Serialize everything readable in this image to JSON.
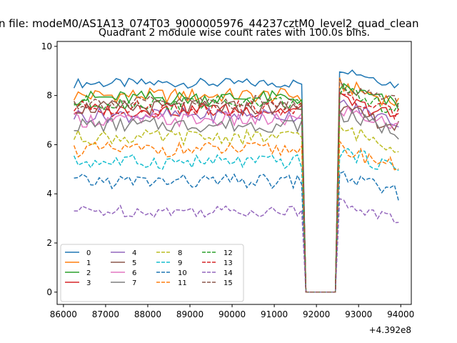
{
  "chart_data": {
    "type": "line",
    "suptitle": "n file: modeM0/AS1A13_074T03_9000005976_44237cztM0_level2_quad_clean",
    "title": "Quadrant 2 module wise count rates with 100.0s bins.",
    "xlabel": "",
    "ylabel": "",
    "offset_label": "+4.392e8",
    "xlim": [
      85850,
      94250
    ],
    "ylim": [
      -0.5,
      10.2
    ],
    "x_ticks": [
      86000,
      87000,
      88000,
      89000,
      90000,
      91000,
      92000,
      93000,
      94000
    ],
    "y_ticks": [
      0,
      2,
      4,
      6,
      8,
      10
    ],
    "x_range": [
      86250,
      93950
    ],
    "bin_s": 100,
    "gap": [
      91750,
      92450
    ],
    "grid": false,
    "legend_placement": "lower-left",
    "legend_columns": 4,
    "series": [
      {
        "name": "0",
        "color": "#1f77b4",
        "dash": "solid",
        "base": 8.5,
        "amp": 0.2,
        "post": 9.1
      },
      {
        "name": "1",
        "color": "#ff7f0e",
        "dash": "solid",
        "base": 8.0,
        "amp": 0.3,
        "post": 8.4
      },
      {
        "name": "2",
        "color": "#2ca02c",
        "dash": "solid",
        "base": 7.9,
        "amp": 0.3,
        "post": 8.3
      },
      {
        "name": "3",
        "color": "#d62728",
        "dash": "solid",
        "base": 7.4,
        "amp": 0.3,
        "post": 7.8
      },
      {
        "name": "4",
        "color": "#9467bd",
        "dash": "solid",
        "base": 7.2,
        "amp": 0.3,
        "post": 7.6
      },
      {
        "name": "5",
        "color": "#8c564b",
        "dash": "solid",
        "base": 7.5,
        "amp": 0.3,
        "post": 7.4
      },
      {
        "name": "6",
        "color": "#e377c2",
        "dash": "solid",
        "base": 7.0,
        "amp": 0.3,
        "post": 7.4
      },
      {
        "name": "7",
        "color": "#7f7f7f",
        "dash": "solid",
        "base": 6.8,
        "amp": 0.3,
        "post": 7.2
      },
      {
        "name": "8",
        "color": "#bcbd22",
        "dash": "dashed",
        "base": 6.3,
        "amp": 0.3,
        "post": 6.6
      },
      {
        "name": "9",
        "color": "#17becf",
        "dash": "dashed",
        "base": 5.3,
        "amp": 0.3,
        "post": 5.7
      },
      {
        "name": "10",
        "color": "#1f77b4",
        "dash": "dashed",
        "base": 4.5,
        "amp": 0.3,
        "post": 4.7
      },
      {
        "name": "11",
        "color": "#ff7f0e",
        "dash": "dashed",
        "base": 5.8,
        "amp": 0.3,
        "post": 5.8
      },
      {
        "name": "12",
        "color": "#2ca02c",
        "dash": "dashed",
        "base": 7.7,
        "amp": 0.3,
        "post": 8.1
      },
      {
        "name": "13",
        "color": "#d62728",
        "dash": "dashed",
        "base": 7.5,
        "amp": 0.3,
        "post": 7.9
      },
      {
        "name": "14",
        "color": "#9467bd",
        "dash": "dashed",
        "base": 3.3,
        "amp": 0.25,
        "post": 3.6
      },
      {
        "name": "15",
        "color": "#8c564b",
        "dash": "dashed",
        "base": 7.7,
        "amp": 0.3,
        "post": 8.4
      }
    ]
  }
}
